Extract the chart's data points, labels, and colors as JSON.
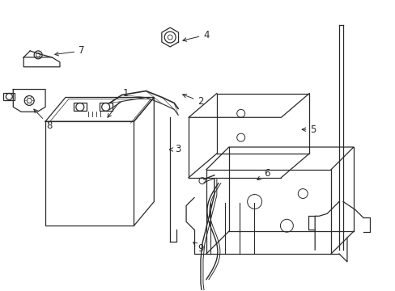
{
  "bg_color": "#ffffff",
  "line_color": "#2a2a2a",
  "figsize": [
    4.89,
    3.6
  ],
  "dpi": 100,
  "label_fontsize": 8.5,
  "lw": 0.9
}
